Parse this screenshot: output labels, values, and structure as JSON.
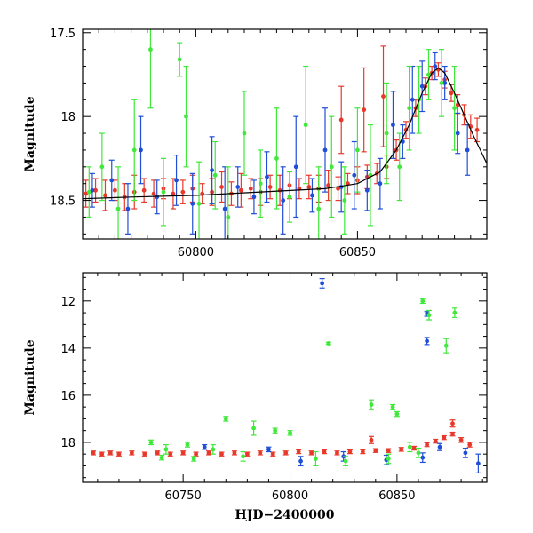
{
  "chart_data": [
    {
      "type": "scatter",
      "panel": "top",
      "xlabel": "",
      "ylabel": "Magnitude",
      "xlim": [
        60765,
        60890
      ],
      "ylim": [
        18.73,
        17.48
      ],
      "y_inverted": true,
      "x_ticks": [
        60800,
        60850
      ],
      "y_ticks": [
        17.5,
        18,
        18.5
      ],
      "y_tick_labels": [
        "17.5",
        "18",
        "18.5"
      ],
      "x_tick_labels": [
        "60800",
        "60850"
      ],
      "grid": false,
      "series": [
        {
          "color": "#e8382a",
          "points": [
            [
              60766,
              18.46
            ],
            [
              60769,
              18.44
            ],
            [
              60772,
              18.47
            ],
            [
              60775,
              18.44
            ],
            [
              60778,
              18.48
            ],
            [
              60781,
              18.45
            ],
            [
              60784,
              18.44
            ],
            [
              60787,
              18.46
            ],
            [
              60790,
              18.43
            ],
            [
              60793,
              18.46
            ],
            [
              60796,
              18.45
            ],
            [
              60799,
              18.43
            ],
            [
              60802,
              18.46
            ],
            [
              60805,
              18.45
            ],
            [
              60808,
              18.42
            ],
            [
              60811,
              18.46
            ],
            [
              60814,
              18.44
            ],
            [
              60817,
              18.43
            ],
            [
              60820,
              18.45
            ],
            [
              60823,
              18.42
            ],
            [
              60826,
              18.44
            ],
            [
              60829,
              18.41
            ],
            [
              60832,
              18.43
            ],
            [
              60835,
              18.42
            ],
            [
              60838,
              18.43
            ],
            [
              60841,
              18.41
            ],
            [
              60844,
              18.43
            ],
            [
              60847,
              18.4
            ],
            [
              60850,
              18.38
            ],
            [
              60853,
              18.36
            ],
            [
              60856,
              18.34
            ],
            [
              60859,
              18.3
            ],
            [
              60862,
              18.2
            ],
            [
              60865,
              18.08
            ],
            [
              60868,
              17.95
            ],
            [
              60871,
              17.82
            ],
            [
              60873,
              17.74
            ],
            [
              60875,
              17.72
            ],
            [
              60877,
              17.78
            ],
            [
              60879,
              17.86
            ],
            [
              60881,
              17.93
            ],
            [
              60883,
              17.99
            ],
            [
              60885,
              18.06
            ],
            [
              60887,
              18.08
            ],
            [
              60845,
              18.02
            ],
            [
              60852,
              17.96
            ],
            [
              60858,
              17.88
            ]
          ],
          "error": [
            0.08,
            0.07,
            0.09,
            0.06,
            0.08,
            0.1,
            0.07,
            0.08,
            0.06,
            0.09,
            0.07,
            0.08,
            0.06,
            0.08,
            0.09,
            0.07,
            0.1,
            0.06,
            0.08,
            0.07,
            0.09,
            0.08,
            0.06,
            0.07,
            0.08,
            0.09,
            0.07,
            0.06,
            0.08,
            0.07,
            0.06,
            0.07,
            0.06,
            0.05,
            0.05,
            0.05,
            0.04,
            0.04,
            0.05,
            0.05,
            0.06,
            0.06,
            0.07,
            0.07,
            0.2,
            0.25,
            0.3
          ]
        },
        {
          "color": "#1f4fd8",
          "points": [
            [
              60768,
              18.44
            ],
            [
              60774,
              18.38
            ],
            [
              60779,
              18.55
            ],
            [
              60783,
              18.2
            ],
            [
              60788,
              18.48
            ],
            [
              60794,
              18.38
            ],
            [
              60799,
              18.52
            ],
            [
              60805,
              18.32
            ],
            [
              60809,
              18.55
            ],
            [
              60813,
              18.42
            ],
            [
              60818,
              18.48
            ],
            [
              60822,
              18.36
            ],
            [
              60827,
              18.5
            ],
            [
              60831,
              18.3
            ],
            [
              60836,
              18.47
            ],
            [
              60840,
              18.2
            ],
            [
              60845,
              18.42
            ],
            [
              60849,
              18.35
            ],
            [
              60853,
              18.44
            ],
            [
              60857,
              18.4
            ],
            [
              60861,
              18.05
            ],
            [
              60864,
              18.15
            ],
            [
              60867,
              17.9
            ],
            [
              60870,
              17.82
            ],
            [
              60874,
              17.7
            ],
            [
              60877,
              17.8
            ],
            [
              60881,
              18.1
            ],
            [
              60884,
              18.2
            ]
          ],
          "error": [
            0.1,
            0.12,
            0.15,
            0.2,
            0.1,
            0.15,
            0.18,
            0.2,
            0.25,
            0.12,
            0.1,
            0.15,
            0.2,
            0.3,
            0.1,
            0.25,
            0.15,
            0.2,
            0.12,
            0.15,
            0.2,
            0.1,
            0.2,
            0.15,
            0.08,
            0.1,
            0.12,
            0.15
          ]
        },
        {
          "color": "#3fe83a",
          "points": [
            [
              60767,
              18.45
            ],
            [
              60771,
              18.3
            ],
            [
              60776,
              18.55
            ],
            [
              60781,
              18.2
            ],
            [
              60786,
              17.6
            ],
            [
              60790,
              18.45
            ],
            [
              60795,
              17.66
            ],
            [
              60797,
              18.0
            ],
            [
              60801,
              18.52
            ],
            [
              60806,
              18.35
            ],
            [
              60810,
              18.6
            ],
            [
              60815,
              18.1
            ],
            [
              60820,
              18.4
            ],
            [
              60825,
              18.25
            ],
            [
              60829,
              18.48
            ],
            [
              60834,
              18.05
            ],
            [
              60838,
              18.55
            ],
            [
              60842,
              18.3
            ],
            [
              60846,
              18.5
            ],
            [
              60850,
              18.2
            ],
            [
              60854,
              18.35
            ],
            [
              60859,
              18.1
            ],
            [
              60863,
              18.3
            ],
            [
              60866,
              17.95
            ],
            [
              60869,
              17.9
            ],
            [
              60872,
              17.75
            ],
            [
              60876,
              17.8
            ],
            [
              60880,
              17.95
            ]
          ],
          "error": [
            0.15,
            0.2,
            0.25,
            0.3,
            0.35,
            0.2,
            0.1,
            0.3,
            0.25,
            0.2,
            0.3,
            0.25,
            0.2,
            0.3,
            0.15,
            0.35,
            0.25,
            0.3,
            0.2,
            0.25,
            0.3,
            0.3,
            0.2,
            0.25,
            0.2,
            0.15,
            0.2,
            0.25
          ]
        }
      ],
      "model_curve": {
        "color": "#000000",
        "points": [
          [
            60765,
            18.49
          ],
          [
            60780,
            18.48
          ],
          [
            60800,
            18.47
          ],
          [
            60820,
            18.45
          ],
          [
            60840,
            18.43
          ],
          [
            60850,
            18.4
          ],
          [
            60857,
            18.33
          ],
          [
            60862,
            18.2
          ],
          [
            60866,
            18.05
          ],
          [
            60870,
            17.86
          ],
          [
            60873,
            17.74
          ],
          [
            60875,
            17.71
          ],
          [
            60877,
            17.74
          ],
          [
            60880,
            17.86
          ],
          [
            60883,
            17.99
          ],
          [
            60886,
            18.12
          ],
          [
            60890,
            18.28
          ]
        ]
      }
    },
    {
      "type": "scatter",
      "panel": "bottom",
      "xlabel": "HJD−2400000",
      "ylabel": "Magnitude",
      "xlim": [
        60703,
        60892
      ],
      "ylim": [
        19.7,
        10.8
      ],
      "y_inverted": true,
      "x_ticks": [
        60750,
        60800,
        60850
      ],
      "x_tick_labels": [
        "60750",
        "60800",
        "60850"
      ],
      "y_ticks": [
        12,
        14,
        16,
        18
      ],
      "y_tick_labels": [
        "12",
        "14",
        "16",
        "18"
      ],
      "grid": false,
      "series": [
        {
          "color": "#e8382a",
          "points": [
            [
              60708,
              18.45
            ],
            [
              60712,
              18.5
            ],
            [
              60716,
              18.45
            ],
            [
              60720,
              18.5
            ],
            [
              60726,
              18.45
            ],
            [
              60732,
              18.5
            ],
            [
              60738,
              18.45
            ],
            [
              60744,
              18.5
            ],
            [
              60750,
              18.45
            ],
            [
              60756,
              18.5
            ],
            [
              60762,
              18.45
            ],
            [
              60768,
              18.5
            ],
            [
              60774,
              18.45
            ],
            [
              60780,
              18.5
            ],
            [
              60786,
              18.45
            ],
            [
              60792,
              18.5
            ],
            [
              60798,
              18.45
            ],
            [
              60804,
              18.4
            ],
            [
              60810,
              18.45
            ],
            [
              60816,
              18.4
            ],
            [
              60822,
              18.45
            ],
            [
              60828,
              18.4
            ],
            [
              60834,
              18.4
            ],
            [
              60840,
              18.35
            ],
            [
              60846,
              18.35
            ],
            [
              60852,
              18.3
            ],
            [
              60858,
              18.25
            ],
            [
              60864,
              18.1
            ],
            [
              60868,
              17.95
            ],
            [
              60872,
              17.8
            ],
            [
              60876,
              17.65
            ],
            [
              60880,
              17.9
            ],
            [
              60884,
              18.1
            ],
            [
              60876,
              17.2
            ],
            [
              60838,
              17.9
            ]
          ],
          "error": [
            0.08,
            0.08,
            0.08,
            0.08,
            0.08,
            0.08,
            0.08,
            0.08,
            0.08,
            0.08,
            0.08,
            0.08,
            0.08,
            0.08,
            0.08,
            0.08,
            0.08,
            0.08,
            0.08,
            0.08,
            0.08,
            0.08,
            0.08,
            0.08,
            0.08,
            0.08,
            0.08,
            0.08,
            0.08,
            0.08,
            0.08,
            0.1,
            0.1,
            0.15,
            0.15
          ]
        },
        {
          "color": "#1f4fd8",
          "points": [
            [
              60815,
              11.25
            ],
            [
              60864,
              12.55
            ],
            [
              60864,
              13.7
            ],
            [
              60888,
              18.9
            ],
            [
              60882,
              18.45
            ],
            [
              60760,
              18.2
            ],
            [
              60790,
              18.3
            ],
            [
              60805,
              18.8
            ],
            [
              60825,
              18.6
            ],
            [
              60845,
              18.75
            ],
            [
              60862,
              18.65
            ],
            [
              60870,
              18.2
            ]
          ],
          "error": [
            0.2,
            0.1,
            0.15,
            0.4,
            0.2,
            0.1,
            0.1,
            0.2,
            0.2,
            0.2,
            0.2,
            0.15
          ]
        },
        {
          "color": "#3fe83a",
          "points": [
            [
              60862,
              12.0
            ],
            [
              60873,
              13.9
            ],
            [
              60877,
              12.5
            ],
            [
              60865,
              12.6
            ],
            [
              60818,
              13.8
            ],
            [
              60838,
              16.4
            ],
            [
              60848,
              16.5
            ],
            [
              60850,
              16.8
            ],
            [
              60770,
              17.0
            ],
            [
              60783,
              17.4
            ],
            [
              60793,
              17.5
            ],
            [
              60800,
              17.6
            ],
            [
              60735,
              18.0
            ],
            [
              60742,
              18.3
            ],
            [
              60752,
              18.1
            ],
            [
              60764,
              18.3
            ],
            [
              60778,
              18.6
            ],
            [
              60812,
              18.7
            ],
            [
              60826,
              18.8
            ],
            [
              60846,
              18.7
            ],
            [
              60856,
              18.2
            ],
            [
              60860,
              18.45
            ],
            [
              60740,
              18.65
            ],
            [
              60755,
              18.7
            ]
          ],
          "error": [
            0.1,
            0.3,
            0.2,
            0.2,
            0.05,
            0.2,
            0.1,
            0.1,
            0.1,
            0.3,
            0.1,
            0.1,
            0.1,
            0.2,
            0.1,
            0.2,
            0.2,
            0.3,
            0.2,
            0.2,
            0.2,
            0.2,
            0.1,
            0.1
          ]
        }
      ]
    }
  ]
}
